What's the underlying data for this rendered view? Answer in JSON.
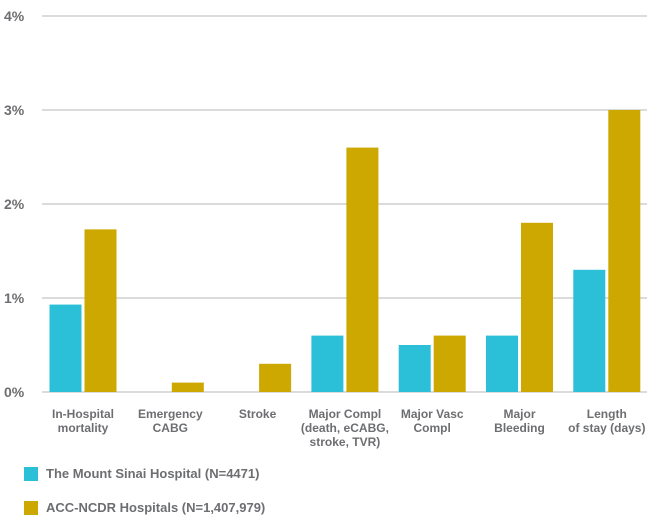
{
  "chart_data": {
    "type": "bar",
    "categories": [
      [
        "In-Hospital",
        "mortality"
      ],
      [
        "Emergency",
        "CABG"
      ],
      [
        "Stroke"
      ],
      [
        "Major Compl",
        "(death, eCABG,",
        "stroke, TVR)"
      ],
      [
        "Major Vasc",
        "Compl"
      ],
      [
        "Major",
        "Bleeding"
      ],
      [
        "Length",
        "of stay (days)"
      ]
    ],
    "series": [
      {
        "name": "The Mount Sinai Hospital (N=4471)",
        "color": "#2bbfd8",
        "values": [
          0.93,
          0,
          0,
          0.6,
          0.5,
          0.6,
          1.3
        ]
      },
      {
        "name": "ACC-NCDR Hospitals (N=1,407,979)",
        "color": "#cca800",
        "values": [
          1.73,
          0.1,
          0.3,
          2.6,
          0.6,
          1.8,
          3.0
        ]
      }
    ],
    "yticks": [
      "0%",
      "1%",
      "2%",
      "3%",
      "4%"
    ],
    "ylim": [
      0,
      4
    ],
    "grid": true,
    "legend_position": "bottom-left"
  }
}
